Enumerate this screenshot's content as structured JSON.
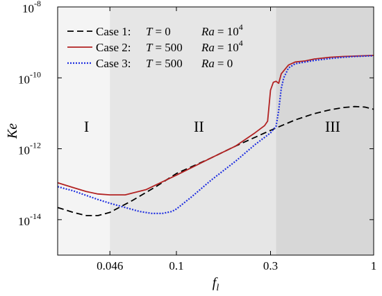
{
  "chart_data": {
    "type": "line",
    "xlabel_base": "f",
    "xlabel_sub": "l",
    "ylabel": "Ke",
    "x_scale": "log",
    "y_scale": "log",
    "xlim": [
      0.025,
      1
    ],
    "ylim": [
      1e-15,
      1e-08
    ],
    "x_ticks": [
      {
        "value": 0.046,
        "label": "0.046"
      },
      {
        "value": 0.1,
        "label": "0.1"
      },
      {
        "value": 0.3,
        "label": "0.3"
      },
      {
        "value": 1,
        "label": "1"
      }
    ],
    "y_ticks": [
      {
        "exp": -14,
        "base": "10",
        "sup": "-14"
      },
      {
        "exp": -12,
        "base": "10",
        "sup": "-12"
      },
      {
        "exp": -10,
        "base": "10",
        "sup": "-10"
      },
      {
        "exp": -8,
        "base": "10",
        "sup": "-8"
      }
    ],
    "regions": [
      {
        "label": "I",
        "x0": 0.025,
        "x1": 0.046,
        "fill": "#f4f4f4",
        "label_x": 0.035,
        "label_y": 3e-12
      },
      {
        "label": "II",
        "x0": 0.046,
        "x1": 0.32,
        "fill": "#e6e6e6",
        "label_x": 0.13,
        "label_y": 3e-12
      },
      {
        "label": "III",
        "x0": 0.32,
        "x1": 1,
        "fill": "#d7d7d7",
        "label_x": 0.62,
        "label_y": 3e-12
      }
    ],
    "series": [
      {
        "name": "Case 1:",
        "legend_T": "T",
        "legend_T_val": "= 0",
        "legend_Ra": "Ra",
        "legend_Ra_val": "= 10",
        "legend_Ra_sup": "4",
        "color": "#000000",
        "style": "dashed",
        "x": [
          0.025,
          0.03,
          0.035,
          0.04,
          0.046,
          0.06,
          0.08,
          0.1,
          0.15,
          0.2,
          0.3,
          0.4,
          0.5,
          0.6,
          0.7,
          0.8,
          0.9,
          1.0
        ],
        "y": [
          2.2e-14,
          1.6e-14,
          1.3e-14,
          1.3e-14,
          1.6e-14,
          3.5e-14,
          9e-14,
          2e-13,
          5.5e-13,
          1.2e-12,
          3.3e-12,
          6.5e-12,
          9.8e-12,
          1.25e-11,
          1.45e-11,
          1.55e-11,
          1.5e-11,
          1.3e-11
        ]
      },
      {
        "name": "Case 2:",
        "legend_T": "T",
        "legend_T_val": "= 500",
        "legend_Ra": "Ra",
        "legend_Ra_val": "= 10",
        "legend_Ra_sup": "4",
        "color": "#b22222",
        "style": "solid",
        "x": [
          0.025,
          0.03,
          0.035,
          0.04,
          0.046,
          0.055,
          0.07,
          0.1,
          0.15,
          0.2,
          0.25,
          0.28,
          0.29,
          0.3,
          0.31,
          0.32,
          0.33,
          0.34,
          0.37,
          0.4,
          0.45,
          0.5,
          0.6,
          0.7,
          0.8,
          0.9,
          1.0
        ],
        "y": [
          1.1e-13,
          8e-14,
          6.2e-14,
          5.3e-14,
          5e-14,
          5e-14,
          7e-14,
          1.8e-13,
          5.5e-13,
          1.2e-12,
          2.8e-12,
          4.5e-12,
          6e-12,
          4.5e-11,
          7.5e-11,
          8e-11,
          7e-11,
          1.3e-10,
          2.3e-10,
          2.8e-10,
          3e-10,
          3.4e-10,
          3.8e-10,
          4e-10,
          4.1e-10,
          4.2e-10,
          4.3e-10
        ]
      },
      {
        "name": "Case 3:",
        "legend_T": "T",
        "legend_T_val": "= 500",
        "legend_Ra": "Ra",
        "legend_Ra_val": "= 0",
        "legend_Ra_sup": "",
        "color": "#1f2fe0",
        "style": "dotted",
        "x": [
          0.025,
          0.03,
          0.035,
          0.04,
          0.046,
          0.055,
          0.065,
          0.075,
          0.085,
          0.095,
          0.1,
          0.12,
          0.15,
          0.2,
          0.25,
          0.3,
          0.32,
          0.33,
          0.34,
          0.35,
          0.37,
          0.4,
          0.45,
          0.5,
          0.6,
          0.7,
          0.8,
          0.9,
          1.0
        ],
        "y": [
          8.5e-14,
          6.5e-14,
          4.8e-14,
          3.7e-14,
          2.9e-14,
          2.2e-14,
          1.7e-14,
          1.5e-14,
          1.5e-14,
          1.7e-14,
          2e-14,
          4.5e-14,
          1.3e-13,
          4.5e-13,
          1.3e-12,
          2.8e-12,
          4.3e-12,
          1.2e-11,
          5e-11,
          1e-10,
          1.9e-10,
          2.5e-10,
          2.8e-10,
          3.1e-10,
          3.5e-10,
          3.8e-10,
          4e-10,
          4.1e-10,
          4.2e-10
        ]
      }
    ]
  }
}
